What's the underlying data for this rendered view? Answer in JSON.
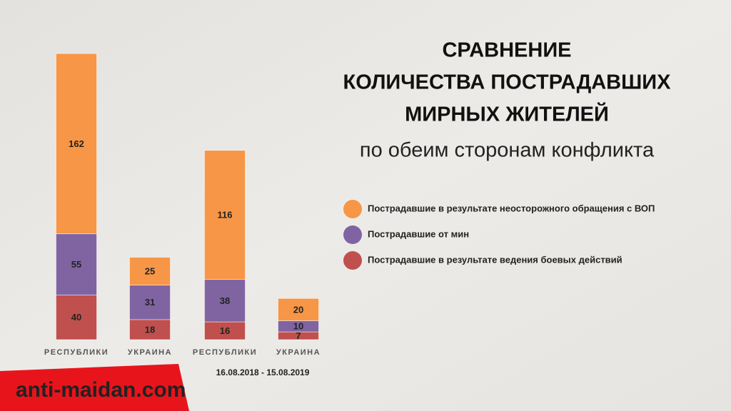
{
  "chart_data": {
    "type": "bar",
    "stacked": true,
    "title": [
      "СРАВНЕНИЕ",
      "КОЛИЧЕСТВА ПОСТРАДАВШИХ",
      "МИРНЫХ ЖИТЕЛЕЙ"
    ],
    "subtitle": "по обеим сторонам конфликта",
    "categories": [
      "РЕСПУБЛИКИ",
      "УКРАИНА",
      "РЕСПУБЛИКИ",
      "УКРАИНА"
    ],
    "series": [
      {
        "name": "Пострадавшие в результате ведения боевых действий",
        "color": "#c0504d",
        "values": [
          40,
          18,
          16,
          7
        ]
      },
      {
        "name": "Пострадавшие от мин",
        "color": "#8064a2",
        "values": [
          55,
          31,
          38,
          10
        ]
      },
      {
        "name": "Пострадавшие в результате неосторожного обращения с ВОП",
        "color": "#f79646",
        "values": [
          162,
          25,
          116,
          20
        ]
      }
    ],
    "period": "16.08.2018 - 15.08.2019",
    "watermark": "anti-maidan.com"
  }
}
